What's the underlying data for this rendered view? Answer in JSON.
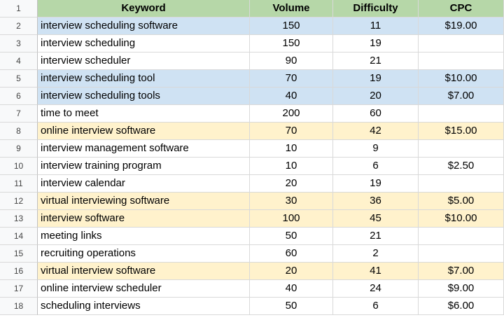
{
  "colors": {
    "header": "#b6d7a8",
    "blue": "#cfe2f3",
    "yellow": "#fff2cc",
    "white": "#ffffff"
  },
  "header": {
    "row_number": "1",
    "keyword": "Keyword",
    "volume": "Volume",
    "difficulty": "Difficulty",
    "cpc": "CPC"
  },
  "rows": [
    {
      "num": "2",
      "keyword": "interview scheduling software",
      "volume": "150",
      "difficulty": "11",
      "cpc": "$19.00",
      "highlight": "blue"
    },
    {
      "num": "3",
      "keyword": "interview scheduling",
      "volume": "150",
      "difficulty": "19",
      "cpc": "",
      "highlight": "white"
    },
    {
      "num": "4",
      "keyword": "interview scheduler",
      "volume": "90",
      "difficulty": "21",
      "cpc": "",
      "highlight": "white"
    },
    {
      "num": "5",
      "keyword": "interview scheduling tool",
      "volume": "70",
      "difficulty": "19",
      "cpc": "$10.00",
      "highlight": "blue"
    },
    {
      "num": "6",
      "keyword": "interview scheduling tools",
      "volume": "40",
      "difficulty": "20",
      "cpc": "$7.00",
      "highlight": "blue"
    },
    {
      "num": "7",
      "keyword": "time to meet",
      "volume": "200",
      "difficulty": "60",
      "cpc": "",
      "highlight": "white"
    },
    {
      "num": "8",
      "keyword": "online interview software",
      "volume": "70",
      "difficulty": "42",
      "cpc": "$15.00",
      "highlight": "yellow"
    },
    {
      "num": "9",
      "keyword": "interview management software",
      "volume": "10",
      "difficulty": "9",
      "cpc": "",
      "highlight": "white"
    },
    {
      "num": "10",
      "keyword": "interview training program",
      "volume": "10",
      "difficulty": "6",
      "cpc": "$2.50",
      "highlight": "white"
    },
    {
      "num": "11",
      "keyword": "interview calendar",
      "volume": "20",
      "difficulty": "19",
      "cpc": "",
      "highlight": "white"
    },
    {
      "num": "12",
      "keyword": "virtual interviewing software",
      "volume": "30",
      "difficulty": "36",
      "cpc": "$5.00",
      "highlight": "yellow"
    },
    {
      "num": "13",
      "keyword": "interview software",
      "volume": "100",
      "difficulty": "45",
      "cpc": "$10.00",
      "highlight": "yellow"
    },
    {
      "num": "14",
      "keyword": "meeting links",
      "volume": "50",
      "difficulty": "21",
      "cpc": "",
      "highlight": "white"
    },
    {
      "num": "15",
      "keyword": "recruiting operations",
      "volume": "60",
      "difficulty": "2",
      "cpc": "",
      "highlight": "white"
    },
    {
      "num": "16",
      "keyword": "virtual interview software",
      "volume": "20",
      "difficulty": "41",
      "cpc": "$7.00",
      "highlight": "yellow"
    },
    {
      "num": "17",
      "keyword": "online interview scheduler",
      "volume": "40",
      "difficulty": "24",
      "cpc": "$9.00",
      "highlight": "white"
    },
    {
      "num": "18",
      "keyword": "scheduling interviews",
      "volume": "50",
      "difficulty": "6",
      "cpc": "$6.00",
      "highlight": "white"
    }
  ]
}
